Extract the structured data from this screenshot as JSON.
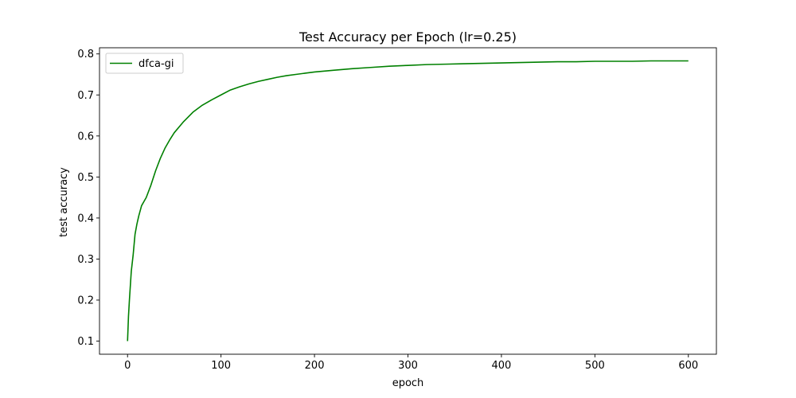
{
  "chart_data": {
    "type": "line",
    "title": "Test Accuracy per Epoch (lr=0.25)",
    "xlabel": "epoch",
    "ylabel": "test accuracy",
    "xlim": [
      -30,
      630
    ],
    "ylim": [
      0.068,
      0.815
    ],
    "xticks": [
      0,
      100,
      200,
      300,
      400,
      500,
      600
    ],
    "yticks": [
      0.1,
      0.2,
      0.3,
      0.4,
      0.5,
      0.6,
      0.7,
      0.8
    ],
    "grid": false,
    "legend_position": "top-left",
    "series": [
      {
        "name": "dfca-gi",
        "color": "#008000",
        "points": [
          [
            0,
            0.1
          ],
          [
            1,
            0.16
          ],
          [
            2,
            0.2
          ],
          [
            4,
            0.27
          ],
          [
            6,
            0.31
          ],
          [
            8,
            0.36
          ],
          [
            10,
            0.385
          ],
          [
            12,
            0.405
          ],
          [
            15,
            0.43
          ],
          [
            20,
            0.45
          ],
          [
            25,
            0.48
          ],
          [
            30,
            0.515
          ],
          [
            35,
            0.545
          ],
          [
            40,
            0.57
          ],
          [
            45,
            0.59
          ],
          [
            50,
            0.608
          ],
          [
            60,
            0.635
          ],
          [
            70,
            0.658
          ],
          [
            80,
            0.675
          ],
          [
            90,
            0.688
          ],
          [
            100,
            0.7
          ],
          [
            110,
            0.712
          ],
          [
            120,
            0.72
          ],
          [
            130,
            0.727
          ],
          [
            140,
            0.733
          ],
          [
            150,
            0.738
          ],
          [
            160,
            0.743
          ],
          [
            170,
            0.747
          ],
          [
            180,
            0.75
          ],
          [
            190,
            0.753
          ],
          [
            200,
            0.756
          ],
          [
            220,
            0.76
          ],
          [
            240,
            0.764
          ],
          [
            260,
            0.767
          ],
          [
            280,
            0.77
          ],
          [
            300,
            0.772
          ],
          [
            320,
            0.774
          ],
          [
            340,
            0.775
          ],
          [
            360,
            0.776
          ],
          [
            380,
            0.777
          ],
          [
            400,
            0.778
          ],
          [
            420,
            0.779
          ],
          [
            440,
            0.78
          ],
          [
            460,
            0.781
          ],
          [
            480,
            0.781
          ],
          [
            500,
            0.782
          ],
          [
            520,
            0.782
          ],
          [
            540,
            0.782
          ],
          [
            560,
            0.783
          ],
          [
            580,
            0.783
          ],
          [
            600,
            0.783
          ]
        ]
      }
    ]
  }
}
